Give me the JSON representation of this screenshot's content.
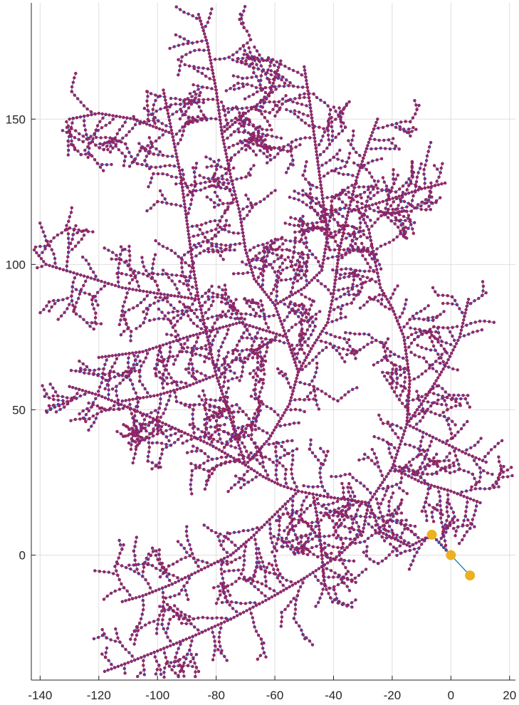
{
  "chart_data": {
    "type": "scatter",
    "title": "",
    "xlabel": "",
    "ylabel": "",
    "xlim": [
      -143,
      22
    ],
    "ylim": [
      -43,
      190
    ],
    "xticks": [
      -140,
      -120,
      -100,
      -80,
      -60,
      -40,
      -20,
      0,
      20
    ],
    "yticks": [
      0,
      50,
      100,
      150
    ],
    "grid": true,
    "description_of_series": "Branching tree network: blue edge segments connecting many small purple nodes, plus three large orange root nodes near the origin.",
    "colors": {
      "edge": "#0072BD",
      "node_fill": "#7E2F8E",
      "node_edge": "#A2142F",
      "root": "#EDB120",
      "axis": "#262626",
      "grid": "#DFDFDF"
    },
    "series": [
      {
        "name": "",
        "kind": "root_nodes",
        "points": [
          [
            -6.5,
            7
          ],
          [
            0,
            0
          ],
          [
            6.5,
            -7
          ]
        ]
      },
      {
        "name": "",
        "kind": "trunks",
        "paths": [
          [
            [
              0,
              0
            ],
            [
              -6.5,
              7
            ],
            [
              -14,
              3
            ],
            [
              -20,
              6
            ],
            [
              -24,
              8
            ],
            [
              -26,
              13
            ],
            [
              -28,
              18
            ]
          ],
          [
            [
              -28,
              18
            ],
            [
              -35,
              19
            ],
            [
              -42,
              20
            ],
            [
              -47,
              21
            ],
            [
              -52,
              22
            ],
            [
              -58,
              24
            ],
            [
              -64,
              27
            ],
            [
              -70,
              31
            ]
          ],
          [
            [
              -70,
              31
            ],
            [
              -73,
              40
            ],
            [
              -76,
              50
            ],
            [
              -80,
              62
            ],
            [
              -83,
              75
            ],
            [
              -86,
              88
            ],
            [
              -88,
              100
            ],
            [
              -90,
              115
            ],
            [
              -92,
              130
            ],
            [
              -95,
              145
            ],
            [
              -98,
              160
            ]
          ],
          [
            [
              -70,
              31
            ],
            [
              -62,
              40
            ],
            [
              -55,
              52
            ],
            [
              -52,
              63
            ],
            [
              -56,
              75
            ],
            [
              -60,
              86
            ],
            [
              -67,
              95
            ],
            [
              -70,
              105
            ],
            [
              -72,
              118
            ],
            [
              -75,
              130
            ],
            [
              -78,
              145
            ],
            [
              -80,
              160
            ],
            [
              -83,
              176
            ],
            [
              -86,
              186
            ]
          ],
          [
            [
              -52,
              63
            ],
            [
              -47,
              72
            ],
            [
              -42,
              80
            ],
            [
              -40,
              90
            ],
            [
              -38,
              105
            ],
            [
              -35,
              118
            ],
            [
              -32,
              130
            ],
            [
              -28,
              142
            ],
            [
              -25,
              150
            ]
          ],
          [
            [
              -28,
              18
            ],
            [
              -20,
              30
            ],
            [
              -15,
              45
            ],
            [
              -14,
              60
            ],
            [
              -16,
              75
            ],
            [
              -20,
              85
            ],
            [
              -24,
              92
            ],
            [
              -26,
              102
            ],
            [
              -28,
              112
            ],
            [
              -32,
              120
            ]
          ],
          [
            [
              -15,
              45
            ],
            [
              -8,
              55
            ],
            [
              -2,
              65
            ],
            [
              3,
              75
            ],
            [
              6,
              88
            ]
          ],
          [
            [
              -70,
              31
            ],
            [
              -82,
              38
            ],
            [
              -95,
              44
            ],
            [
              -108,
              50
            ],
            [
              -120,
              55
            ],
            [
              -130,
              58
            ]
          ],
          [
            [
              -86,
              88
            ],
            [
              -100,
              90
            ],
            [
              -112,
              92
            ],
            [
              -125,
              96
            ],
            [
              -138,
              100
            ],
            [
              -142,
              105
            ]
          ],
          [
            [
              -56,
              75
            ],
            [
              -72,
              80
            ],
            [
              -90,
              75
            ],
            [
              -105,
              70
            ],
            [
              -120,
              68
            ]
          ],
          [
            [
              -28,
              18
            ],
            [
              -30,
              8
            ],
            [
              -38,
              0
            ],
            [
              -50,
              -8
            ],
            [
              -62,
              -15
            ],
            [
              -75,
              -22
            ],
            [
              -88,
              -28
            ],
            [
              -100,
              -33
            ],
            [
              -110,
              -37
            ],
            [
              -118,
              -40
            ]
          ],
          [
            [
              -52,
              22
            ],
            [
              -60,
              14
            ],
            [
              -68,
              6
            ],
            [
              -75,
              0
            ],
            [
              -85,
              -5
            ],
            [
              -95,
              -10
            ],
            [
              -105,
              -14
            ],
            [
              -112,
              -16
            ]
          ],
          [
            [
              -47,
              21
            ],
            [
              -45,
              10
            ],
            [
              -44,
              0
            ],
            [
              -43,
              -10
            ]
          ],
          [
            [
              -80,
              62
            ],
            [
              -90,
              58
            ],
            [
              -100,
              55
            ],
            [
              -112,
              53
            ]
          ],
          [
            [
              -60,
              86
            ],
            [
              -50,
              92
            ],
            [
              -44,
              98
            ],
            [
              -42,
              110
            ],
            [
              -44,
              125
            ],
            [
              -46,
              140
            ],
            [
              -48,
              155
            ],
            [
              -50,
              168
            ]
          ],
          [
            [
              -35,
              118
            ],
            [
              -22,
              122
            ],
            [
              -10,
              126
            ],
            [
              -2,
              128
            ]
          ],
          [
            [
              -15,
              45
            ],
            [
              -5,
              40
            ],
            [
              5,
              35
            ],
            [
              12,
              32
            ]
          ],
          [
            [
              -20,
              30
            ],
            [
              -10,
              25
            ],
            [
              0,
              22
            ],
            [
              10,
              18
            ]
          ],
          [
            [
              -95,
              145
            ],
            [
              -108,
              150
            ],
            [
              -120,
              152
            ],
            [
              -130,
              150
            ]
          ],
          [
            [
              -78,
              145
            ],
            [
              -70,
              152
            ],
            [
              -62,
              158
            ],
            [
              -58,
              170
            ]
          ]
        ]
      }
    ]
  }
}
